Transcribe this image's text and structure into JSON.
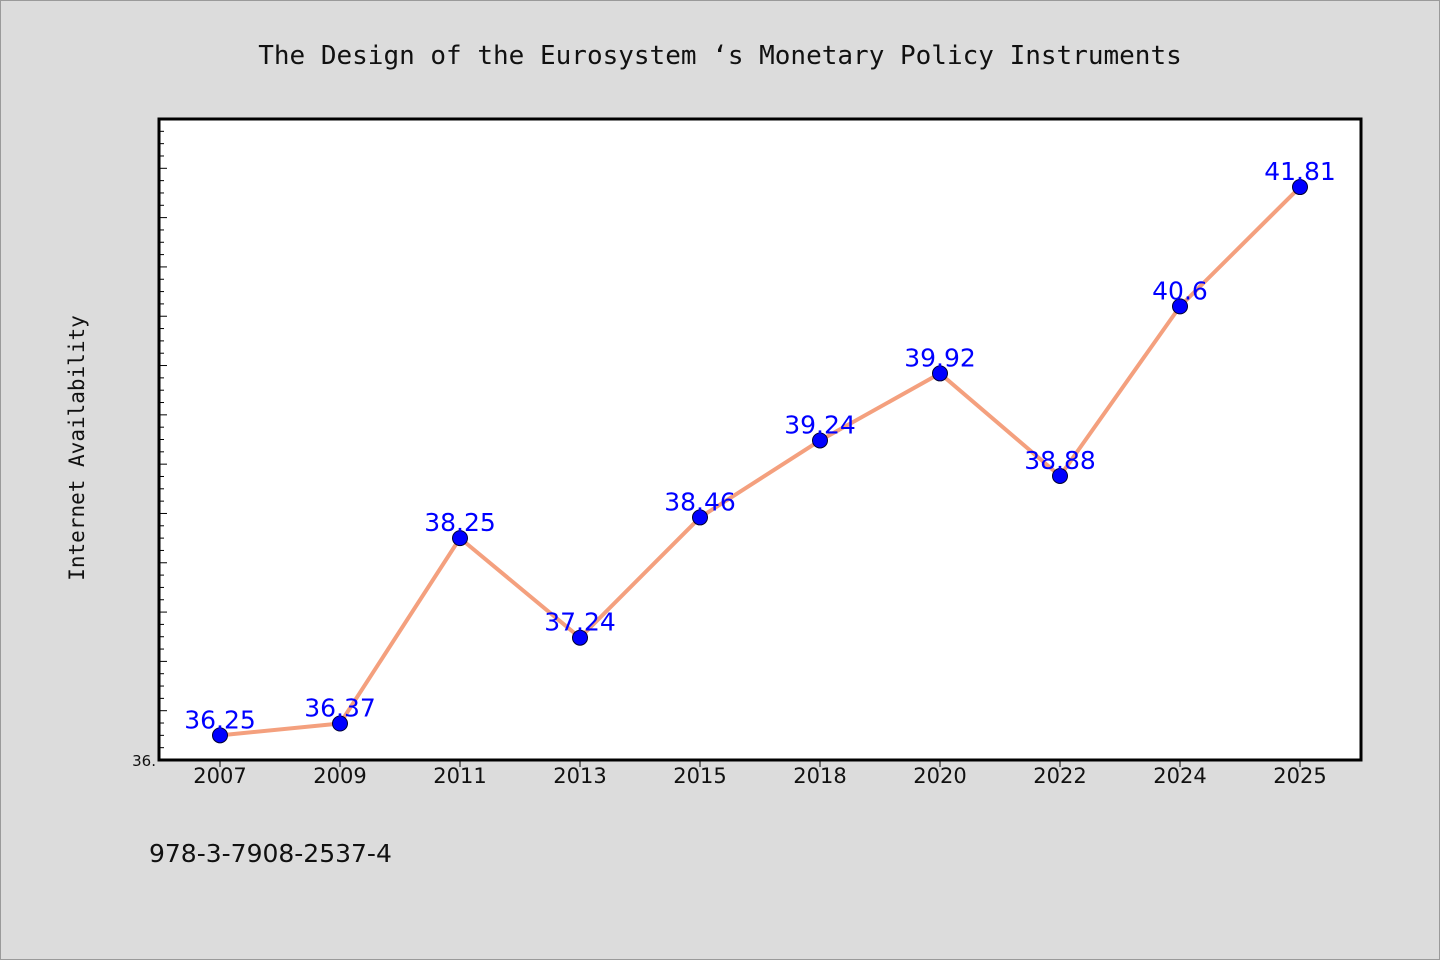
{
  "chart_data": {
    "type": "line",
    "title": "The Design of the Eurosystem ‘s Monetary Policy Instruments",
    "xlabel": "",
    "ylabel": "Internet Availability",
    "categories": [
      "2007",
      "2009",
      "2011",
      "2013",
      "2015",
      "2018",
      "2020",
      "2022",
      "2024",
      "2025"
    ],
    "series": [
      {
        "values": [
          36.25,
          36.37,
          38.25,
          37.24,
          38.46,
          39.24,
          39.92,
          38.88,
          40.6,
          41.81
        ],
        "labels": [
          "36.25",
          "36.37",
          "38.25",
          "37.24",
          "38.46",
          "39.24",
          "39.92",
          "38.88",
          "40.6",
          "41.81"
        ]
      }
    ],
    "ylim": [
      36.0,
      42.5
    ],
    "ytick_labels": [
      "36."
    ],
    "grid": false,
    "legend": "none",
    "colors": {
      "line": "#f4a07e",
      "marker": "#0000ff",
      "label": "#0000ff"
    }
  },
  "footer": {
    "isbn": "978-3-7908-2537-4"
  }
}
